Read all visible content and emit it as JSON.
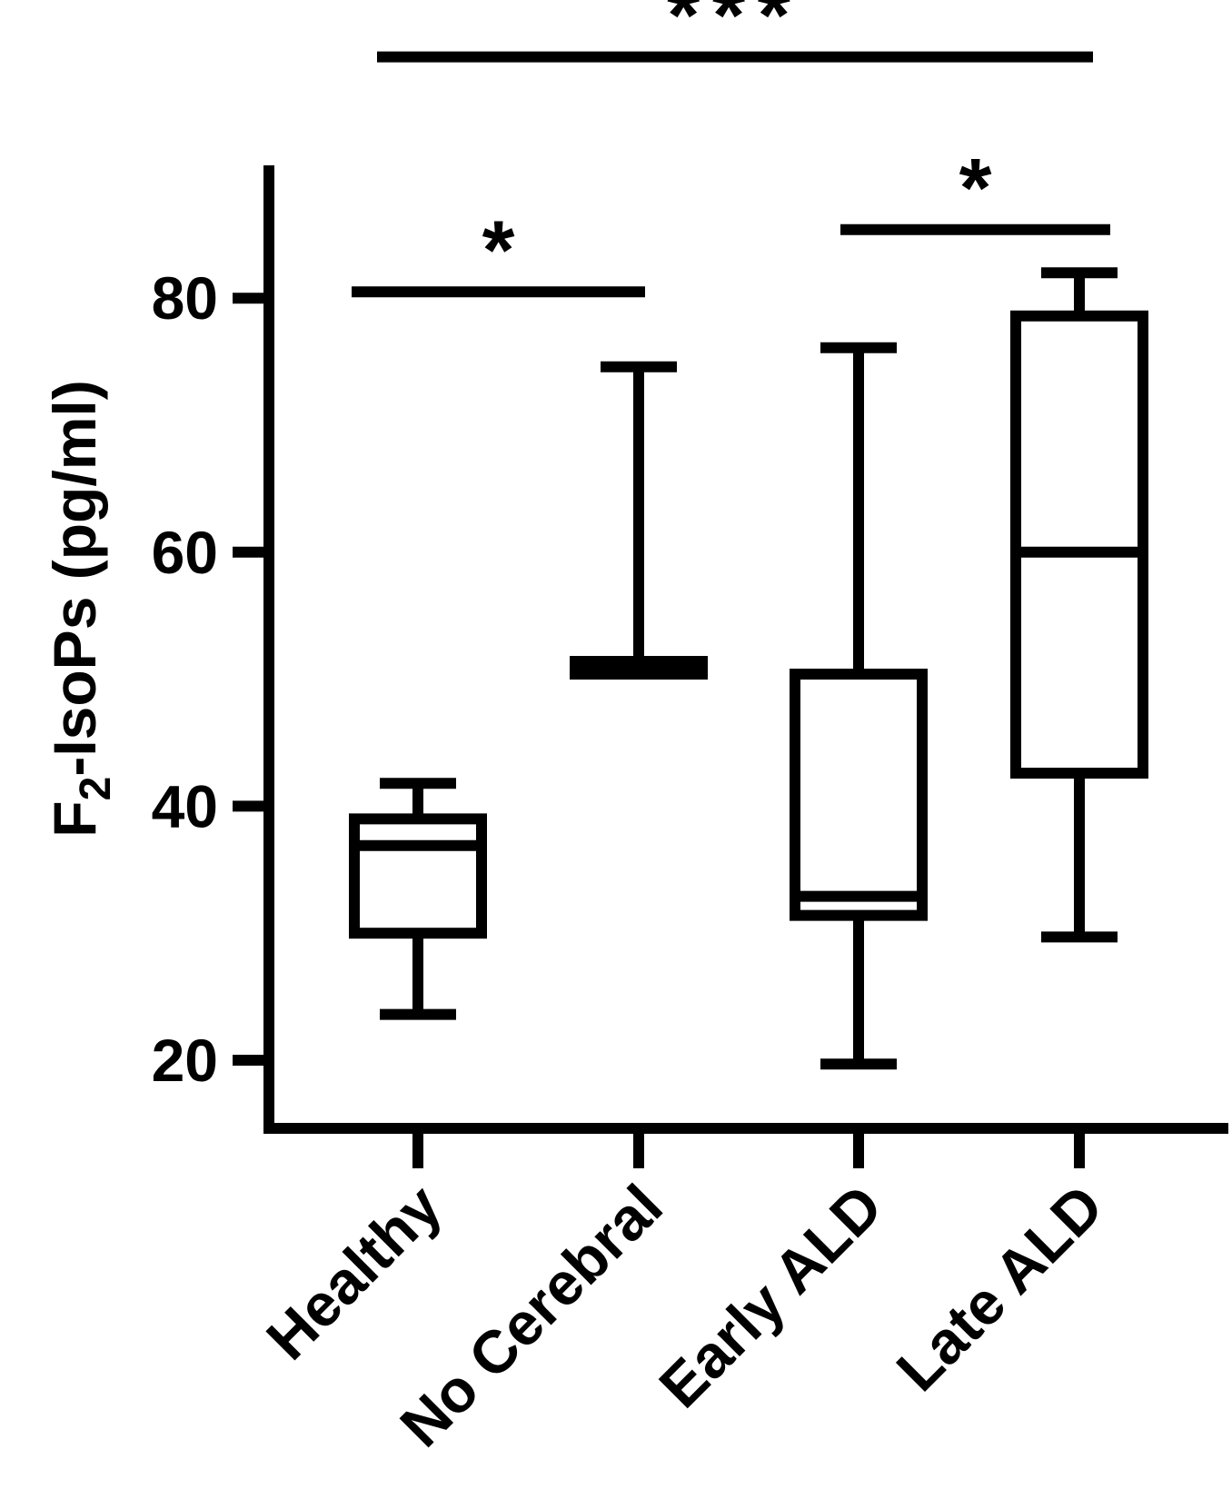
{
  "chart_data": {
    "type": "box",
    "title": "",
    "ylabel": {
      "main": "F",
      "subscript": "2",
      "rest": "-IsoPs (pg/ml)"
    },
    "xlabel": "",
    "ylim": [
      15,
      90
    ],
    "yticks": [
      20,
      40,
      60,
      80
    ],
    "ytick_labels": [
      "20",
      "40",
      "60",
      "80"
    ],
    "categories": [
      "Healthy",
      "No Cerebral",
      "Early ALD",
      "Late ALD"
    ],
    "boxes": [
      {
        "category": "Healthy",
        "min": 23.6,
        "q1": 30.0,
        "median": 36.9,
        "q3": 39.0,
        "max": 41.8
      },
      {
        "category": "No Cerebral",
        "min": 50.4,
        "q1": 50.4,
        "median": 50.8,
        "q3": 51.4,
        "max": 74.6
      },
      {
        "category": "Early ALD",
        "min": 19.7,
        "q1": 31.4,
        "median": 32.9,
        "q3": 50.4,
        "max": 76.1
      },
      {
        "category": "Late ALD",
        "min": 29.7,
        "q1": 42.6,
        "median": 60.0,
        "q3": 78.6,
        "max": 82.0
      }
    ],
    "significance": [
      {
        "from": 0,
        "to": 1,
        "y": 80.5,
        "label": "*"
      },
      {
        "from": 2,
        "to": 3,
        "y": 85.4,
        "label": "*"
      },
      {
        "from": 0,
        "to": 3,
        "y": 99.0,
        "label": "***"
      }
    ],
    "grid": false,
    "legend": "none"
  }
}
